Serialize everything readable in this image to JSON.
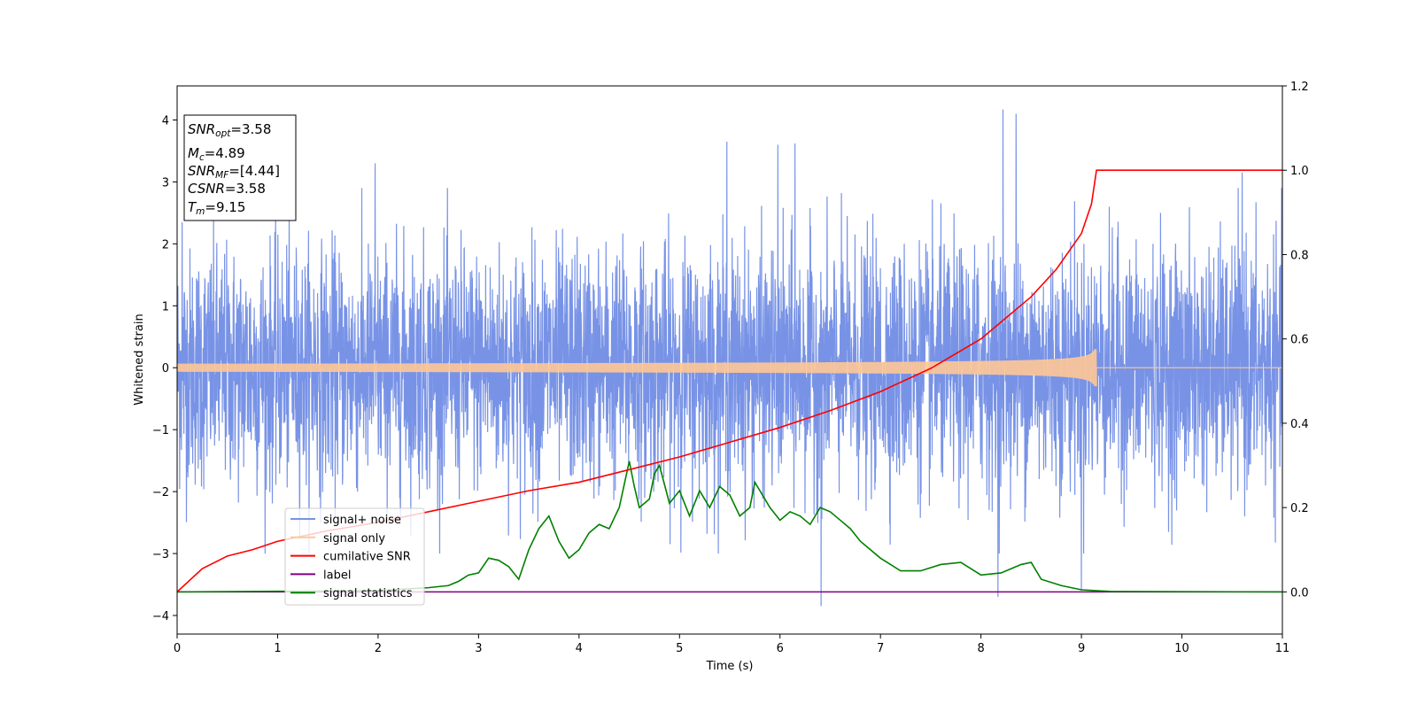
{
  "chart_data": {
    "type": "line",
    "xlabel": "Time (s)",
    "ylabel": "Whitened strain",
    "xlim": [
      0,
      11
    ],
    "ylim": [
      -4.3,
      4.55
    ],
    "ylim_right": [
      -0.1,
      1.2
    ],
    "xticks": [
      "0",
      "1",
      "2",
      "3",
      "4",
      "5",
      "6",
      "7",
      "8",
      "9",
      "10",
      "11"
    ],
    "yticks_left": [
      "−4",
      "−3",
      "−2",
      "−1",
      "0",
      "1",
      "2",
      "3",
      "4"
    ],
    "yticks_right": [
      "0.0",
      "0.2",
      "0.4",
      "0.6",
      "0.8",
      "1.0",
      "1.2"
    ],
    "grid": false,
    "legend_position": "lower-left",
    "annotation": {
      "lines": [
        {
          "base": "SNR",
          "sub": "opt",
          "value": "=3.58"
        },
        {
          "base": "M",
          "sub": "c",
          "value": "=4.89"
        },
        {
          "base": "SNR",
          "sub": "MF",
          "value": "=[4.44]"
        },
        {
          "base": "CSNR",
          "sub": "",
          "value": "=3.58"
        },
        {
          "base": "T",
          "sub": "m",
          "value": "=9.15"
        }
      ]
    },
    "series": [
      {
        "name": "signal+ noise",
        "color": "#7893e6",
        "axis": "left",
        "kind": "noise",
        "x_range": [
          0,
          11
        ],
        "amplitude_approx": 2.5,
        "notable_peaks": [
          [
            0.05,
            2.35
          ],
          [
            1.97,
            3.3
          ],
          [
            5.47,
            3.65
          ],
          [
            5.98,
            3.6
          ],
          [
            6.15,
            3.62
          ],
          [
            8.22,
            4.17
          ],
          [
            8.35,
            4.1
          ],
          [
            10.6,
            3.15
          ],
          [
            6.41,
            -3.85
          ],
          [
            9.0,
            -3.6
          ],
          [
            8.17,
            -3.7
          ]
        ]
      },
      {
        "name": "signal only",
        "color": "#ffc896",
        "axis": "left",
        "kind": "chirp",
        "x_range": [
          0,
          11
        ],
        "merger_time": 9.15,
        "peak_amplitude": 0.3
      },
      {
        "name": "cumilative SNR",
        "color": "#ff0000",
        "axis": "right",
        "kind": "line",
        "x": [
          0,
          0.25,
          0.5,
          0.75,
          1,
          1.5,
          2,
          2.5,
          3,
          3.5,
          4,
          4.5,
          5,
          5.5,
          6,
          6.5,
          7,
          7.5,
          8,
          8.5,
          8.75,
          9,
          9.1,
          9.15,
          11
        ],
        "y": [
          0.0,
          0.055,
          0.085,
          0.1,
          0.12,
          0.145,
          0.165,
          0.19,
          0.215,
          0.24,
          0.26,
          0.29,
          0.32,
          0.355,
          0.39,
          0.43,
          0.475,
          0.53,
          0.6,
          0.7,
          0.765,
          0.85,
          0.92,
          1.0,
          1.0
        ]
      },
      {
        "name": "label",
        "color": "#800080",
        "axis": "right",
        "kind": "line",
        "x": [
          0,
          11
        ],
        "y": [
          0,
          0
        ]
      },
      {
        "name": "signal statistics",
        "color": "#008000",
        "axis": "right",
        "kind": "line",
        "x": [
          0,
          2.0,
          2.5,
          2.7,
          2.8,
          2.9,
          3.0,
          3.1,
          3.2,
          3.3,
          3.4,
          3.5,
          3.6,
          3.7,
          3.8,
          3.9,
          4.0,
          4.1,
          4.2,
          4.3,
          4.4,
          4.5,
          4.55,
          4.6,
          4.7,
          4.75,
          4.8,
          4.9,
          5.0,
          5.1,
          5.2,
          5.3,
          5.4,
          5.5,
          5.6,
          5.7,
          5.75,
          5.8,
          5.9,
          6.0,
          6.1,
          6.2,
          6.3,
          6.4,
          6.5,
          6.6,
          6.7,
          6.8,
          7.0,
          7.2,
          7.4,
          7.6,
          7.8,
          8.0,
          8.2,
          8.4,
          8.5,
          8.6,
          8.8,
          9.0,
          9.3,
          11.0
        ],
        "y": [
          0.0,
          0.003,
          0.01,
          0.015,
          0.025,
          0.04,
          0.045,
          0.08,
          0.075,
          0.06,
          0.03,
          0.1,
          0.15,
          0.18,
          0.12,
          0.08,
          0.1,
          0.14,
          0.16,
          0.15,
          0.2,
          0.31,
          0.25,
          0.2,
          0.22,
          0.28,
          0.3,
          0.21,
          0.24,
          0.18,
          0.24,
          0.2,
          0.25,
          0.23,
          0.18,
          0.2,
          0.26,
          0.24,
          0.2,
          0.17,
          0.19,
          0.18,
          0.16,
          0.2,
          0.19,
          0.17,
          0.15,
          0.12,
          0.08,
          0.05,
          0.05,
          0.065,
          0.07,
          0.04,
          0.045,
          0.065,
          0.07,
          0.03,
          0.015,
          0.005,
          0.001,
          0.0
        ]
      }
    ]
  }
}
